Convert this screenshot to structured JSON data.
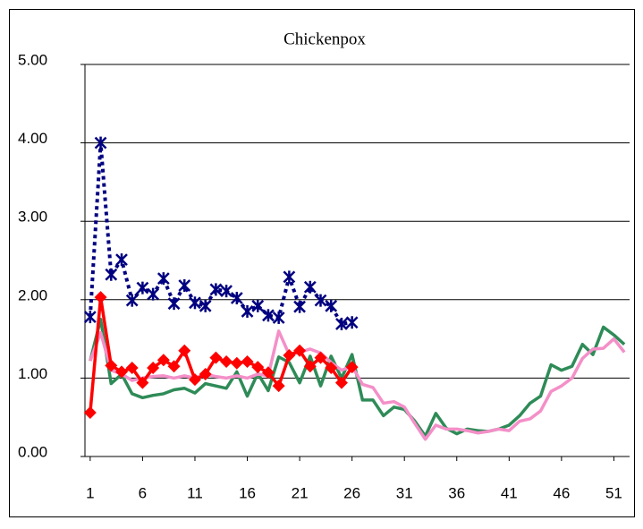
{
  "chart_data": {
    "type": "line",
    "title": "Chickenpox",
    "x": [
      1,
      2,
      3,
      4,
      5,
      6,
      7,
      8,
      9,
      10,
      11,
      12,
      13,
      14,
      15,
      16,
      17,
      18,
      19,
      20,
      21,
      22,
      23,
      24,
      25,
      26,
      27,
      28,
      29,
      30,
      31,
      32,
      33,
      34,
      35,
      36,
      37,
      38,
      39,
      40,
      41,
      42,
      43,
      44,
      45,
      46,
      47,
      48,
      49,
      50,
      51,
      52
    ],
    "xlim": [
      0.5,
      52.5
    ],
    "xticks": [
      1,
      6,
      11,
      16,
      21,
      26,
      31,
      36,
      41,
      46,
      51
    ],
    "ylim": [
      0,
      5
    ],
    "yticks": [
      {
        "value": 0,
        "label": "0.00"
      },
      {
        "value": 1,
        "label": "1.00"
      },
      {
        "value": 2,
        "label": "2.00"
      },
      {
        "value": 3,
        "label": "3.00"
      },
      {
        "value": 4,
        "label": "4.00"
      },
      {
        "value": 5,
        "label": "5.00"
      }
    ],
    "grid": true,
    "series": [
      {
        "color": "#2e8b57",
        "marker": "none",
        "dash": false,
        "values": [
          1.22,
          1.75,
          0.93,
          1.05,
          0.8,
          0.75,
          0.78,
          0.8,
          0.85,
          0.87,
          0.81,
          0.93,
          0.9,
          0.87,
          1.08,
          0.77,
          1.06,
          0.84,
          1.27,
          1.2,
          0.94,
          1.28,
          0.9,
          1.28,
          1.0,
          1.3,
          0.72,
          0.72,
          0.52,
          0.63,
          0.6,
          0.45,
          0.26,
          0.55,
          0.36,
          0.29,
          0.35,
          0.33,
          0.32,
          0.35,
          0.4,
          0.52,
          0.68,
          0.77,
          1.17,
          1.1,
          1.15,
          1.43,
          1.3,
          1.65,
          1.55,
          1.43
        ]
      },
      {
        "color": "#f48fc8",
        "marker": "none",
        "dash": false,
        "values": [
          1.22,
          1.58,
          1.1,
          1.05,
          0.97,
          1.0,
          1.02,
          1.03,
          1.0,
          1.03,
          1.0,
          1.05,
          1.02,
          1.0,
          1.03,
          1.0,
          1.05,
          1.03,
          1.6,
          1.3,
          1.33,
          1.37,
          1.32,
          1.2,
          1.1,
          1.15,
          0.92,
          0.88,
          0.68,
          0.7,
          0.63,
          0.42,
          0.22,
          0.4,
          0.35,
          0.35,
          0.33,
          0.3,
          0.32,
          0.35,
          0.33,
          0.45,
          0.48,
          0.58,
          0.83,
          0.9,
          1.0,
          1.25,
          1.37,
          1.38,
          1.5,
          1.33
        ]
      },
      {
        "color": "#000080",
        "marker": "asterisk",
        "dash": true,
        "values": [
          1.78,
          4.0,
          2.32,
          2.51,
          1.99,
          2.15,
          2.07,
          2.27,
          1.95,
          2.18,
          1.96,
          1.92,
          2.13,
          2.11,
          2.02,
          1.85,
          1.92,
          1.8,
          1.77,
          2.29,
          1.91,
          2.16,
          1.99,
          1.92,
          1.69,
          1.71,
          null,
          null,
          null,
          null,
          null,
          null,
          null,
          null,
          null,
          null,
          null,
          null,
          null,
          null,
          null,
          null,
          null,
          null,
          null,
          null,
          null,
          null,
          null,
          null,
          null,
          null
        ]
      },
      {
        "color": "#ff0000",
        "marker": "diamond",
        "dash": false,
        "values": [
          0.56,
          2.03,
          1.16,
          1.08,
          1.13,
          0.94,
          1.13,
          1.23,
          1.15,
          1.35,
          0.98,
          1.05,
          1.26,
          1.21,
          1.19,
          1.21,
          1.14,
          1.07,
          0.9,
          1.29,
          1.35,
          1.15,
          1.26,
          1.13,
          0.94,
          1.14,
          null,
          null,
          null,
          null,
          null,
          null,
          null,
          null,
          null,
          null,
          null,
          null,
          null,
          null,
          null,
          null,
          null,
          null,
          null,
          null,
          null,
          null,
          null,
          null,
          null,
          null
        ]
      }
    ]
  }
}
